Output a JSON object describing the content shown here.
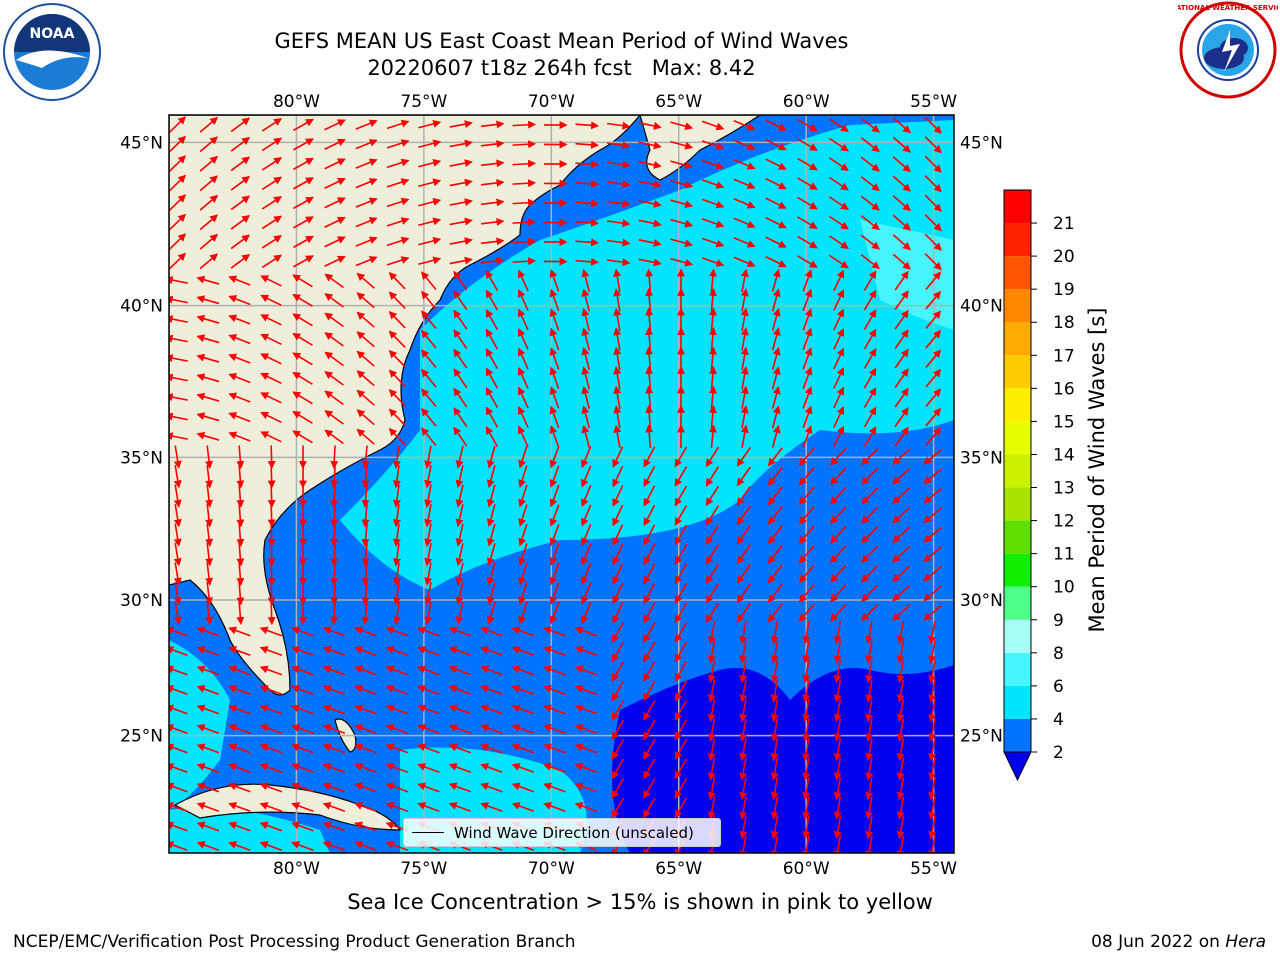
{
  "title": {
    "line1": "GEFS MEAN US East Coast Mean Period of Wind Waves",
    "line2": "20220607 t18z 264h fcst   Max: 8.42"
  },
  "map": {
    "lon_labels": [
      "80°W",
      "75°W",
      "70°W",
      "65°W",
      "60°W",
      "55°W"
    ],
    "lat_labels": [
      "45°N",
      "40°N",
      "35°N",
      "30°N",
      "25°N"
    ],
    "lon_min": -85,
    "lon_max": -54.2,
    "lat_min": 20.5,
    "lat_max": 45.8,
    "grid_lons": [
      -80,
      -75,
      -70,
      -65,
      -60,
      -55
    ],
    "grid_lats": [
      45,
      40,
      35,
      30,
      25
    ],
    "arrow_color": "#ff0000",
    "land_color": "#efeedb"
  },
  "colorbar": {
    "title": "Mean Period of Wind Waves [s]",
    "ticks": [
      "2",
      "4",
      "6",
      "8",
      "9",
      "10",
      "11",
      "12",
      "13",
      "14",
      "15",
      "16",
      "17",
      "18",
      "19",
      "20",
      "21"
    ],
    "colors": [
      "#0073ff",
      "#00e5ff",
      "#47f5ff",
      "#a6fff8",
      "#4dff88",
      "#11ee00",
      "#5edf00",
      "#a8e400",
      "#ccf000",
      "#e6ff00",
      "#ffee00",
      "#ffcc00",
      "#ffaa00",
      "#ff8800",
      "#ff5500",
      "#ff2200",
      "#ff0000"
    ],
    "under_color": "#0000ee"
  },
  "legend": {
    "label": "Wind Wave Direction (unscaled)"
  },
  "caption": "Sea Ice Concentration > 15% is shown in pink to yellow",
  "footer": {
    "left": "NCEP/EMC/Verification Post Processing Product Generation Branch",
    "date": "08 Jun 2022 on ",
    "machine": "Hera"
  },
  "logos": {
    "left": "NOAA",
    "right": "NATIONAL WEATHER SERVICE"
  }
}
